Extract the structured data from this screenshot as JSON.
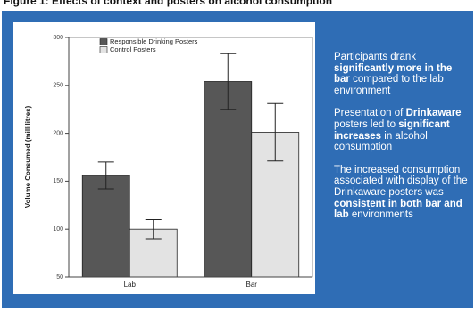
{
  "title": "Figure 1: Effects of context and posters on alcohol consumption",
  "chart_data": {
    "type": "bar",
    "y_label": "Volume Consumed (millilitres)",
    "categories": [
      "Lab",
      "Bar"
    ],
    "series": [
      {
        "name": "Responsible Drinking Posters",
        "color": "#575757",
        "values": [
          156,
          254
        ],
        "errors": [
          14,
          29
        ]
      },
      {
        "name": "Control Posters",
        "color": "#e3e3e3",
        "values": [
          100,
          201
        ],
        "errors": [
          10,
          30
        ]
      }
    ],
    "ylim": [
      50,
      300
    ],
    "yticks": [
      50,
      100,
      150,
      200,
      250,
      300
    ]
  },
  "notes": [
    [
      {
        "text": "Participants drank "
      },
      {
        "text": "significantly more in the bar",
        "bold": true
      },
      {
        "text": " compared to the lab environment"
      }
    ],
    [
      {
        "text": "Presentation of "
      },
      {
        "text": "Drinkaware",
        "bold": true
      },
      {
        "text": " posters led to "
      },
      {
        "text": "significant increases",
        "bold": true
      },
      {
        "text": " in alcohol consumption"
      }
    ],
    [
      {
        "text": "The increased consumption associated with display of the Drinkaware posters was "
      },
      {
        "text": "consistent in both bar and lab",
        "bold": true
      },
      {
        "text": " environments"
      }
    ]
  ]
}
